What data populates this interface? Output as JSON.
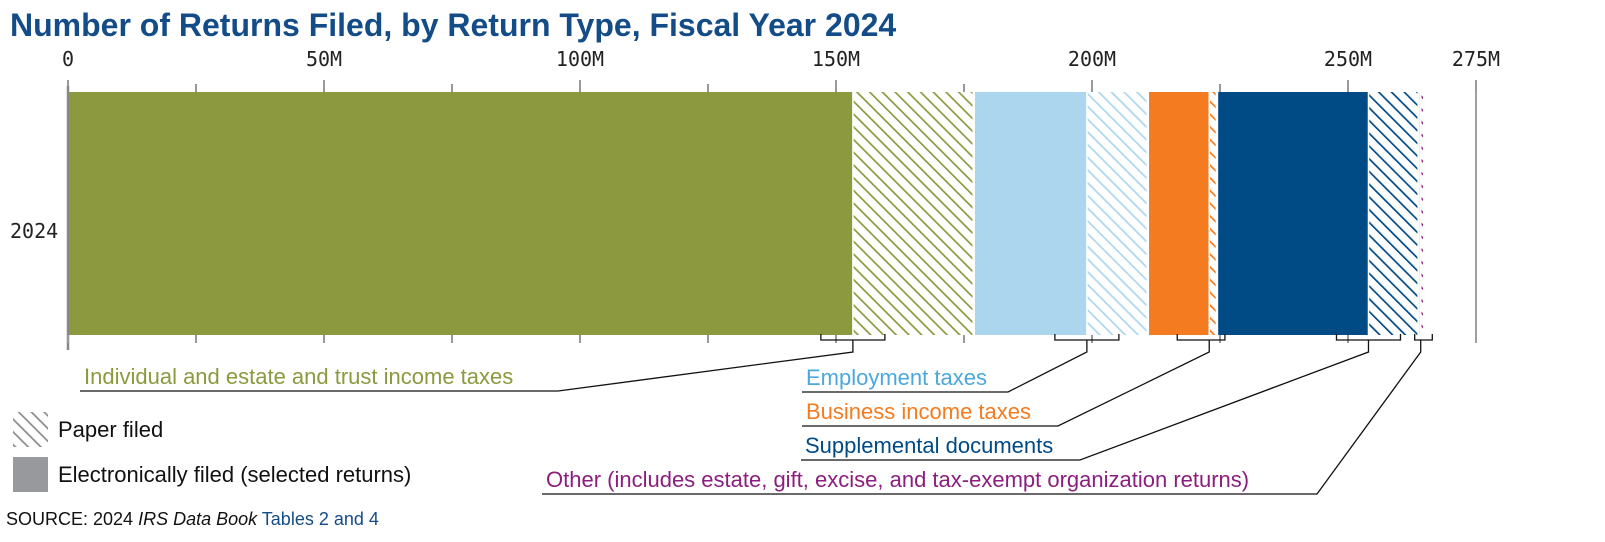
{
  "title": "Number of Returns Filed, by Return Type, Fiscal Year 2024",
  "chart_data": {
    "type": "bar",
    "orientation": "horizontal",
    "stacked": true,
    "title": "Number of Returns Filed, by Return Type, Fiscal Year 2024",
    "categories": [
      "2024"
    ],
    "xlim": [
      0,
      275
    ],
    "x_ticks": [
      0,
      50,
      100,
      150,
      200,
      250,
      275
    ],
    "x_tick_labels": [
      "0",
      "50M",
      "100M",
      "150M",
      "200M",
      "250M",
      "275M"
    ],
    "x_minor_ticks": [
      25,
      75,
      125,
      175,
      225
    ],
    "value_unit": "millions of returns",
    "grid": false,
    "series": [
      {
        "name": "Individual and estate and trust income taxes",
        "color": "#8c993e",
        "electronic": 153.3,
        "paper": 23.6
      },
      {
        "name": "Employment taxes",
        "color": "#acd6ee",
        "electronic": 22.1,
        "paper": 11.9
      },
      {
        "name": "Business income taxes",
        "color": "#f47b20",
        "electronic": 12.0,
        "paper": 1.5
      },
      {
        "name": "Supplemental documents",
        "color": "#004a86",
        "electronic": 29.6,
        "paper": 9.8
      },
      {
        "name": "Other (includes estate, gift, excise, and tax-exempt organization returns)",
        "color": "#8b1e7e",
        "electronic": 0.4,
        "paper": 0.7
      }
    ],
    "legend": {
      "placement": "bottom-left",
      "items": [
        {
          "label": "Paper filed",
          "swatch": "hatched",
          "color": "#8a8a8a"
        },
        {
          "label": "Electronically filed (selected returns)",
          "swatch": "solid",
          "color": "#97999c"
        }
      ]
    }
  },
  "source": {
    "prefix": "SOURCE: 2024 ",
    "publication": "IRS Data Book",
    "link": " Tables 2 and 4"
  }
}
